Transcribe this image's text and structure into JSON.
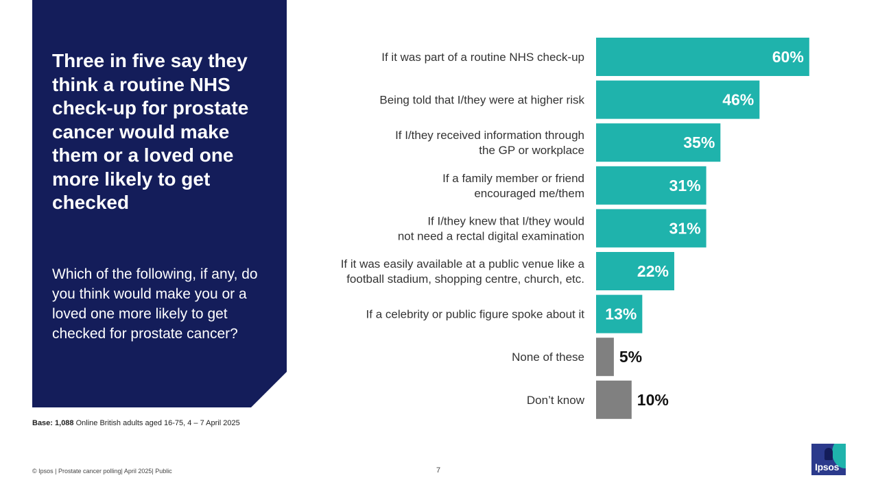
{
  "panel": {
    "title": "Three in five say they think a routine NHS check-up for prostate cancer would make them or a loved one more likely to get checked",
    "question": "Which of the following, if any, do you think would make you or a loved one more likely to get checked for prostate cancer?"
  },
  "base_note": {
    "label": "Base: 1,088",
    "text": "Online British adults aged 16-75, 4 – 7 April 2025"
  },
  "footer": {
    "left": "© Ipsos | Prostate cancer polling| April 2025| Public",
    "page": "7"
  },
  "logo": {
    "text": "Ipsos"
  },
  "colors": {
    "teal": "#1fb3ac",
    "grey": "#808080",
    "navy": "#141d5a"
  },
  "chart_data": {
    "type": "bar",
    "orientation": "horizontal",
    "categories": [
      [
        "If it was part of a routine NHS check-up"
      ],
      [
        "Being told that I/they were at higher risk"
      ],
      [
        "If I/they received information through",
        "the GP or workplace"
      ],
      [
        "If a family member or friend",
        "encouraged me/them"
      ],
      [
        "If I/they knew that I/they would",
        "not need a rectal digital examination"
      ],
      [
        "If it was easily available at a public venue like a",
        "football stadium, shopping centre, church, etc."
      ],
      [
        "If a celebrity or public figure spoke about it"
      ],
      [
        "None of these"
      ],
      [
        "Don’t know"
      ]
    ],
    "values": [
      60,
      46,
      35,
      31,
      31,
      22,
      13,
      5,
      10
    ],
    "value_labels": [
      "60%",
      "46%",
      "35%",
      "31%",
      "31%",
      "22%",
      "13%",
      "5%",
      "10%"
    ],
    "bar_colors": [
      "#1fb3ac",
      "#1fb3ac",
      "#1fb3ac",
      "#1fb3ac",
      "#1fb3ac",
      "#1fb3ac",
      "#1fb3ac",
      "#808080",
      "#808080"
    ],
    "xlim": [
      0,
      100
    ],
    "grid": false,
    "legend": "none"
  }
}
